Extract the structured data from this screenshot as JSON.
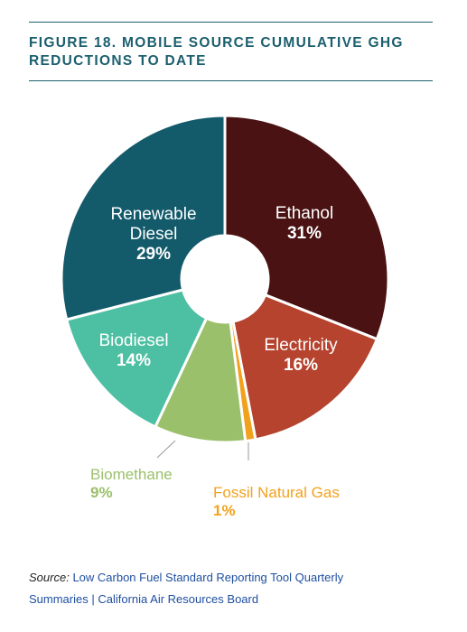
{
  "title_lines": [
    "FIGURE 18. MOBILE SOURCE CUMULATIVE GHG",
    "REDUCTIONS TO DATE"
  ],
  "chart_data": {
    "type": "pie",
    "donut": true,
    "title": "FIGURE 18. MOBILE SOURCE CUMULATIVE GHG REDUCTIONS TO DATE",
    "slices": [
      {
        "label": "Ethanol",
        "value": 31,
        "display": "31%",
        "color": "#4a1212"
      },
      {
        "label": "Electricity",
        "value": 16,
        "display": "16%",
        "color": "#b5432e"
      },
      {
        "label": "Fossil Natural Gas",
        "value": 1,
        "display": "1%",
        "color": "#f2a11d"
      },
      {
        "label": "Biomethane",
        "value": 9,
        "display": "9%",
        "color": "#9bc06b"
      },
      {
        "label": "Biodiesel",
        "value": 14,
        "display": "14%",
        "color": "#4dbfa3"
      },
      {
        "label": "Renewable Diesel",
        "value": 29,
        "display": "29%",
        "color": "#135a6b"
      }
    ]
  },
  "source": {
    "prefix": "Source:",
    "line1": "Low Carbon Fuel Standard Reporting Tool Quarterly",
    "line2": "Summaries | California Air Resources Board"
  }
}
